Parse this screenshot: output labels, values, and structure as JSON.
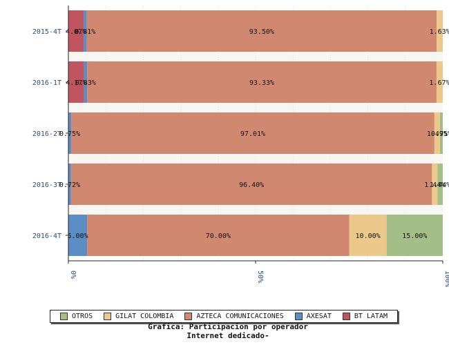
{
  "chart_data": {
    "type": "bar",
    "orientation": "horizontal",
    "stacked": "percent",
    "categories": [
      "2015-4T",
      "2016-1T",
      "2016-2T",
      "2016-3T",
      "2016-4T"
    ],
    "series": [
      {
        "name": "BT LATAM",
        "color": "#c0555f",
        "values": [
          4.07,
          4.17,
          0,
          0,
          0
        ],
        "labels": [
          "4.07%",
          "4.17%",
          "",
          "",
          ""
        ]
      },
      {
        "name": "AXESAT",
        "color": "#5b8ec4",
        "values": [
          0.81,
          0.83,
          0.75,
          0.72,
          5.0
        ],
        "labels": [
          "0.81%",
          "0.83%",
          "0.75%",
          "0.72%",
          "5.00%"
        ]
      },
      {
        "name": "AZTECA COMUNICACIONES",
        "color": "#d08870",
        "values": [
          93.5,
          93.33,
          97.01,
          96.4,
          70.0
        ],
        "labels": [
          "93.50%",
          "93.33%",
          "97.01%",
          "96.40%",
          "70.00%"
        ]
      },
      {
        "name": "GILAT COLOMBIA",
        "color": "#ecc98a",
        "values": [
          1.63,
          1.67,
          1.49,
          1.44,
          10.0
        ],
        "labels": [
          "1.63%",
          "1.67%",
          "1.49%",
          "1.44%",
          "10.00%"
        ]
      },
      {
        "name": "OTROS",
        "color": "#a3bf87",
        "values": [
          0,
          0,
          0.75,
          1.44,
          15.0
        ],
        "labels": [
          "",
          "",
          "0.75%",
          "1.44%",
          "15.00%"
        ]
      }
    ],
    "x_ticks": [
      "0%",
      "50%",
      "100%"
    ],
    "xlim": [
      0,
      100
    ],
    "grid": true,
    "legend_position": "bottom",
    "legend_order": [
      "OTROS",
      "GILAT COLOMBIA",
      "AZTECA COMUNICACIONES",
      "AXESAT",
      "BT LATAM"
    ]
  },
  "caption": {
    "line1": "Grafica: Participacion por operador",
    "line2": "Internet dedicado-"
  }
}
